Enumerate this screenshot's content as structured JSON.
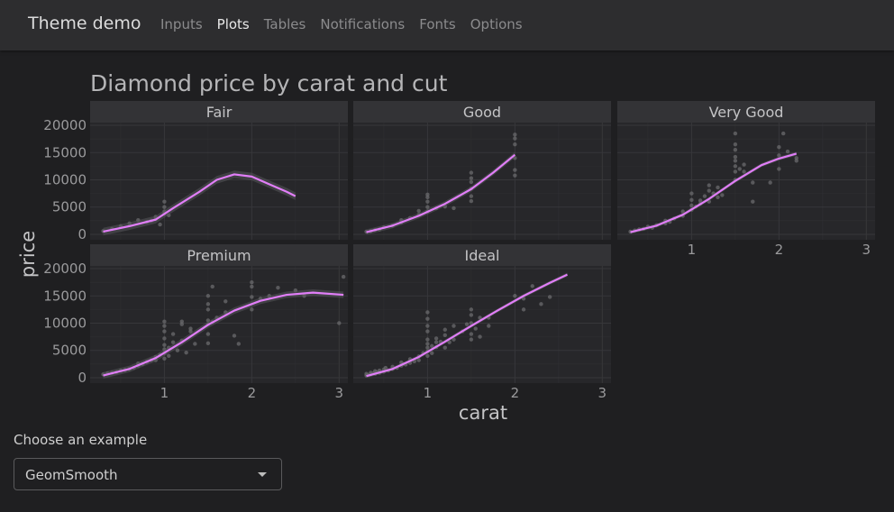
{
  "app": {
    "brand": "Theme demo",
    "nav": [
      {
        "label": "Inputs",
        "active": false
      },
      {
        "label": "Plots",
        "active": true
      },
      {
        "label": "Tables",
        "active": false
      },
      {
        "label": "Notifications",
        "active": false
      },
      {
        "label": "Fonts",
        "active": false
      },
      {
        "label": "Options",
        "active": false
      }
    ]
  },
  "select": {
    "label": "Choose an example",
    "value": "GeomSmooth"
  },
  "colors": {
    "page_bg": "#1f1f21",
    "panel_bg": "#27272a",
    "strip_bg": "#333336",
    "smooth": "#e17ef8",
    "points": "#6b6b6e",
    "text": "#9a9a9c"
  },
  "chart_data": {
    "type": "scatter",
    "title": "Diamond price by carat and cut",
    "xlabel": "carat",
    "ylabel": "price",
    "xlim": [
      0.15,
      3.1
    ],
    "ylim": [
      -1000,
      20500
    ],
    "xticks": [
      1,
      2,
      3
    ],
    "yticks": [
      0,
      5000,
      10000,
      15000,
      20000
    ],
    "smooth_color": "#e17ef8",
    "facets": [
      {
        "name": "Fair",
        "points": [
          [
            0.3,
            600
          ],
          [
            0.4,
            1000
          ],
          [
            0.5,
            1500
          ],
          [
            0.6,
            2000
          ],
          [
            0.7,
            2600
          ],
          [
            0.8,
            2300
          ],
          [
            0.9,
            3200
          ],
          [
            0.9,
            2800
          ],
          [
            1.0,
            4200
          ],
          [
            1.0,
            3800
          ],
          [
            1.0,
            5000
          ],
          [
            1.0,
            6000
          ],
          [
            1.05,
            3500
          ],
          [
            0.95,
            1800
          ],
          [
            0.85,
            2500
          ]
        ],
        "smooth": [
          [
            0.3,
            500
          ],
          [
            0.6,
            1500
          ],
          [
            0.9,
            2700
          ],
          [
            1.1,
            4800
          ],
          [
            1.4,
            7800
          ],
          [
            1.6,
            10000
          ],
          [
            1.8,
            11000
          ],
          [
            2.0,
            10600
          ],
          [
            2.2,
            9200
          ],
          [
            2.4,
            7800
          ],
          [
            2.5,
            7000
          ]
        ],
        "ribbon": 700
      },
      {
        "name": "Good",
        "points": [
          [
            0.3,
            500
          ],
          [
            0.35,
            600
          ],
          [
            0.4,
            800
          ],
          [
            0.45,
            900
          ],
          [
            0.5,
            1300
          ],
          [
            0.6,
            1600
          ],
          [
            0.7,
            2200
          ],
          [
            0.7,
            2600
          ],
          [
            0.8,
            3000
          ],
          [
            0.9,
            3600
          ],
          [
            0.9,
            4300
          ],
          [
            1.0,
            4200
          ],
          [
            1.0,
            5000
          ],
          [
            1.0,
            6000
          ],
          [
            1.0,
            6800
          ],
          [
            1.0,
            7300
          ],
          [
            1.1,
            4800
          ],
          [
            1.2,
            5100
          ],
          [
            1.3,
            4800
          ],
          [
            1.5,
            6100
          ],
          [
            1.5,
            7000
          ],
          [
            1.5,
            8400
          ],
          [
            1.5,
            9600
          ],
          [
            1.5,
            10300
          ],
          [
            1.5,
            11300
          ],
          [
            2.0,
            10800
          ],
          [
            2.0,
            11800
          ],
          [
            2.0,
            14000
          ],
          [
            2.0,
            16500
          ],
          [
            2.0,
            17600
          ],
          [
            2.0,
            18300
          ]
        ],
        "smooth": [
          [
            0.3,
            400
          ],
          [
            0.6,
            1600
          ],
          [
            0.9,
            3400
          ],
          [
            1.2,
            5600
          ],
          [
            1.5,
            8300
          ],
          [
            1.75,
            11300
          ],
          [
            2.0,
            14600
          ]
        ],
        "ribbon": 500
      },
      {
        "name": "Very Good",
        "points": [
          [
            0.3,
            500
          ],
          [
            0.35,
            700
          ],
          [
            0.4,
            900
          ],
          [
            0.45,
            1000
          ],
          [
            0.5,
            1400
          ],
          [
            0.55,
            1200
          ],
          [
            0.6,
            1700
          ],
          [
            0.7,
            2000
          ],
          [
            0.7,
            2500
          ],
          [
            0.75,
            2300
          ],
          [
            0.8,
            2900
          ],
          [
            0.9,
            3400
          ],
          [
            0.9,
            4200
          ],
          [
            1.0,
            4500
          ],
          [
            1.0,
            5300
          ],
          [
            1.0,
            6300
          ],
          [
            1.0,
            7500
          ],
          [
            1.05,
            5100
          ],
          [
            1.1,
            5600
          ],
          [
            1.1,
            6200
          ],
          [
            1.15,
            7000
          ],
          [
            1.2,
            6000
          ],
          [
            1.2,
            8000
          ],
          [
            1.2,
            9000
          ],
          [
            1.25,
            7500
          ],
          [
            1.3,
            6800
          ],
          [
            1.3,
            8600
          ],
          [
            1.35,
            7200
          ],
          [
            1.5,
            10000
          ],
          [
            1.5,
            11500
          ],
          [
            1.5,
            12500
          ],
          [
            1.5,
            13500
          ],
          [
            1.5,
            14200
          ],
          [
            1.5,
            15500
          ],
          [
            1.5,
            16500
          ],
          [
            1.5,
            18500
          ],
          [
            1.55,
            12000
          ],
          [
            1.6,
            12800
          ],
          [
            1.6,
            11500
          ],
          [
            1.7,
            6000
          ],
          [
            1.7,
            9500
          ],
          [
            1.9,
            9500
          ],
          [
            2.0,
            12000
          ],
          [
            2.0,
            14500
          ],
          [
            2.0,
            16000
          ],
          [
            2.05,
            18500
          ],
          [
            2.1,
            15200
          ],
          [
            2.2,
            13500
          ],
          [
            2.2,
            14000
          ]
        ],
        "smooth": [
          [
            0.3,
            400
          ],
          [
            0.6,
            1600
          ],
          [
            0.9,
            3600
          ],
          [
            1.2,
            6500
          ],
          [
            1.5,
            9800
          ],
          [
            1.8,
            12700
          ],
          [
            2.0,
            13900
          ],
          [
            2.2,
            14800
          ]
        ],
        "ribbon": 350
      },
      {
        "name": "Premium",
        "points": [
          [
            0.3,
            600
          ],
          [
            0.35,
            800
          ],
          [
            0.4,
            900
          ],
          [
            0.45,
            1000
          ],
          [
            0.5,
            1300
          ],
          [
            0.55,
            1400
          ],
          [
            0.6,
            1600
          ],
          [
            0.65,
            1800
          ],
          [
            0.7,
            2200
          ],
          [
            0.7,
            2600
          ],
          [
            0.75,
            2500
          ],
          [
            0.8,
            2900
          ],
          [
            0.85,
            3200
          ],
          [
            0.9,
            3200
          ],
          [
            0.9,
            3800
          ],
          [
            0.95,
            4200
          ],
          [
            1.0,
            3500
          ],
          [
            1.0,
            4500
          ],
          [
            1.0,
            5200
          ],
          [
            1.0,
            6000
          ],
          [
            1.0,
            7200
          ],
          [
            1.0,
            8500
          ],
          [
            1.0,
            9500
          ],
          [
            1.0,
            10300
          ],
          [
            1.05,
            4000
          ],
          [
            1.05,
            5500
          ],
          [
            1.1,
            6500
          ],
          [
            1.1,
            8000
          ],
          [
            1.15,
            5000
          ],
          [
            1.2,
            6800
          ],
          [
            1.2,
            9800
          ],
          [
            1.2,
            10300
          ],
          [
            1.25,
            4600
          ],
          [
            1.3,
            8500
          ],
          [
            1.3,
            9000
          ],
          [
            1.35,
            6200
          ],
          [
            1.5,
            6300
          ],
          [
            1.5,
            8000
          ],
          [
            1.5,
            9800
          ],
          [
            1.5,
            10500
          ],
          [
            1.5,
            12500
          ],
          [
            1.5,
            13500
          ],
          [
            1.5,
            15000
          ],
          [
            1.55,
            10200
          ],
          [
            1.55,
            16700
          ],
          [
            1.6,
            11000
          ],
          [
            1.7,
            12000
          ],
          [
            1.7,
            14000
          ],
          [
            1.8,
            7700
          ],
          [
            1.85,
            6200
          ],
          [
            2.0,
            12500
          ],
          [
            2.0,
            14800
          ],
          [
            2.0,
            16700
          ],
          [
            2.0,
            17500
          ],
          [
            2.1,
            14500
          ],
          [
            2.2,
            15000
          ],
          [
            2.3,
            16500
          ],
          [
            2.5,
            16000
          ],
          [
            2.6,
            15000
          ],
          [
            3.0,
            10000
          ],
          [
            3.05,
            18500
          ]
        ],
        "smooth": [
          [
            0.3,
            400
          ],
          [
            0.6,
            1600
          ],
          [
            0.9,
            3600
          ],
          [
            1.2,
            6500
          ],
          [
            1.5,
            9700
          ],
          [
            1.8,
            12300
          ],
          [
            2.1,
            14100
          ],
          [
            2.4,
            15200
          ],
          [
            2.7,
            15600
          ],
          [
            3.05,
            15200
          ]
        ],
        "ribbon": 600
      },
      {
        "name": "Ideal",
        "points": [
          [
            0.3,
            400
          ],
          [
            0.3,
            700
          ],
          [
            0.32,
            500
          ],
          [
            0.35,
            600
          ],
          [
            0.35,
            900
          ],
          [
            0.38,
            800
          ],
          [
            0.4,
            700
          ],
          [
            0.4,
            1200
          ],
          [
            0.42,
            1000
          ],
          [
            0.45,
            900
          ],
          [
            0.45,
            1300
          ],
          [
            0.5,
            1500
          ],
          [
            0.5,
            1100
          ],
          [
            0.52,
            1800
          ],
          [
            0.55,
            1300
          ],
          [
            0.6,
            1600
          ],
          [
            0.6,
            2000
          ],
          [
            0.65,
            1800
          ],
          [
            0.7,
            2200
          ],
          [
            0.7,
            2800
          ],
          [
            0.72,
            2500
          ],
          [
            0.75,
            2400
          ],
          [
            0.8,
            2700
          ],
          [
            0.8,
            3400
          ],
          [
            0.85,
            3000
          ],
          [
            0.9,
            3200
          ],
          [
            0.9,
            3900
          ],
          [
            0.95,
            4500
          ],
          [
            1.0,
            4000
          ],
          [
            1.0,
            4800
          ],
          [
            1.0,
            5500
          ],
          [
            1.0,
            6200
          ],
          [
            1.0,
            7000
          ],
          [
            1.0,
            8500
          ],
          [
            1.0,
            9500
          ],
          [
            1.0,
            10800
          ],
          [
            1.0,
            12000
          ],
          [
            1.05,
            4500
          ],
          [
            1.05,
            5800
          ],
          [
            1.1,
            5600
          ],
          [
            1.1,
            6500
          ],
          [
            1.1,
            7200
          ],
          [
            1.15,
            6600
          ],
          [
            1.2,
            5500
          ],
          [
            1.2,
            7800
          ],
          [
            1.2,
            8800
          ],
          [
            1.25,
            6500
          ],
          [
            1.3,
            7000
          ],
          [
            1.3,
            9500
          ],
          [
            1.4,
            8500
          ],
          [
            1.45,
            9800
          ],
          [
            1.5,
            7000
          ],
          [
            1.5,
            8000
          ],
          [
            1.5,
            10000
          ],
          [
            1.5,
            11500
          ],
          [
            1.5,
            12500
          ],
          [
            1.55,
            9000
          ],
          [
            1.6,
            7500
          ],
          [
            1.6,
            11000
          ],
          [
            1.7,
            9500
          ],
          [
            1.7,
            11000
          ],
          [
            2.0,
            15000
          ],
          [
            2.1,
            12500
          ],
          [
            2.1,
            14500
          ],
          [
            2.2,
            16800
          ],
          [
            2.3,
            13500
          ],
          [
            2.4,
            14800
          ]
        ],
        "smooth": [
          [
            0.3,
            300
          ],
          [
            0.6,
            1600
          ],
          [
            0.9,
            3800
          ],
          [
            1.2,
            6600
          ],
          [
            1.5,
            9500
          ],
          [
            1.8,
            12300
          ],
          [
            2.1,
            15000
          ],
          [
            2.4,
            17400
          ],
          [
            2.6,
            18900
          ]
        ],
        "ribbon": 350
      }
    ]
  }
}
